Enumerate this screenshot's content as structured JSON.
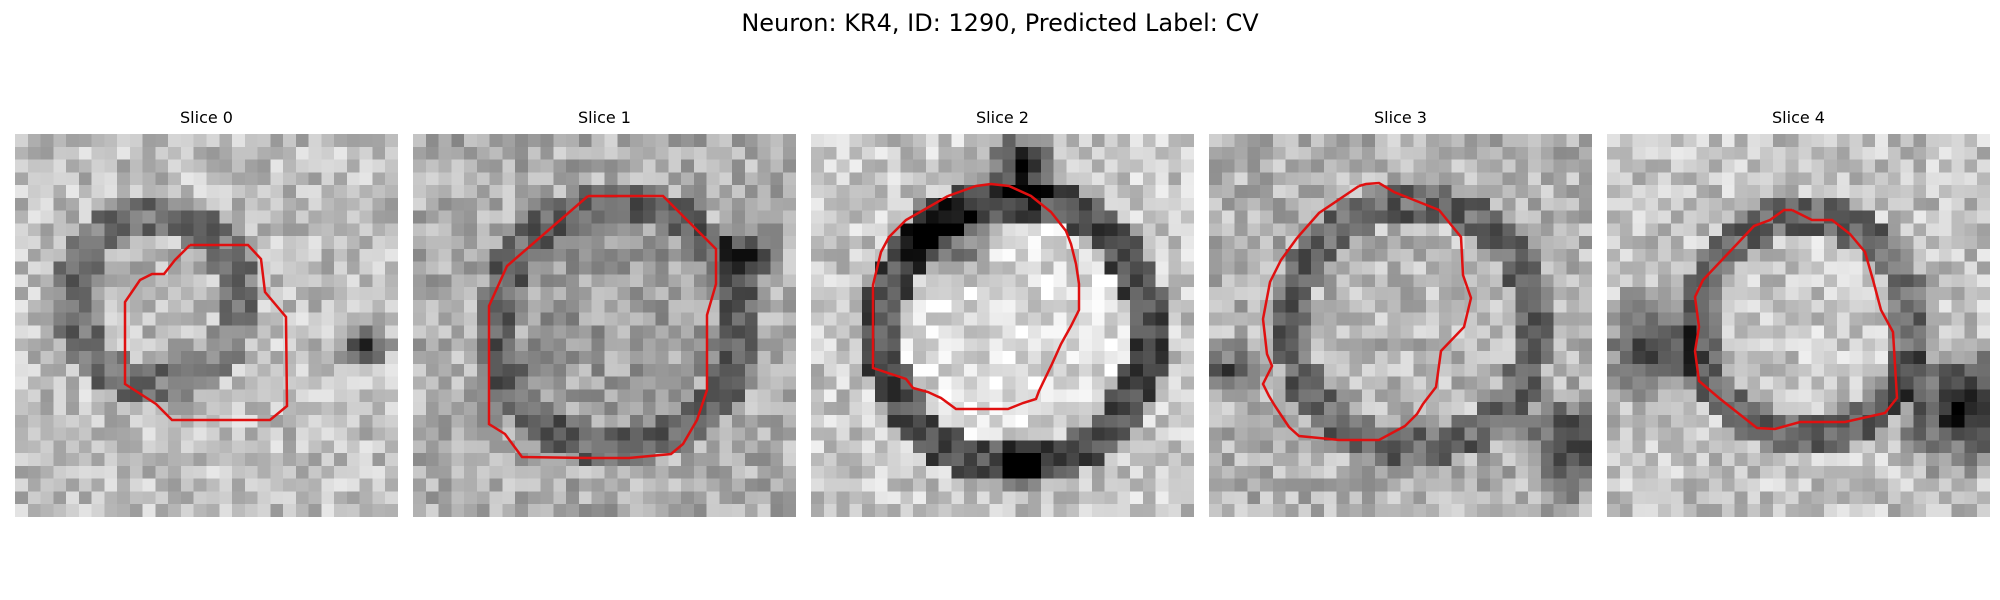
{
  "figure": {
    "title": "Neuron: KR4, ID: 1290, Predicted Label: CV"
  },
  "slices": [
    {
      "label": "Slice 0"
    },
    {
      "label": "Slice 1"
    },
    {
      "label": "Slice 2"
    },
    {
      "label": "Slice 3"
    },
    {
      "label": "Slice 4"
    }
  ],
  "colors": {
    "contour": "#e01010",
    "background": "#ffffff"
  },
  "colormap": "grayscale"
}
